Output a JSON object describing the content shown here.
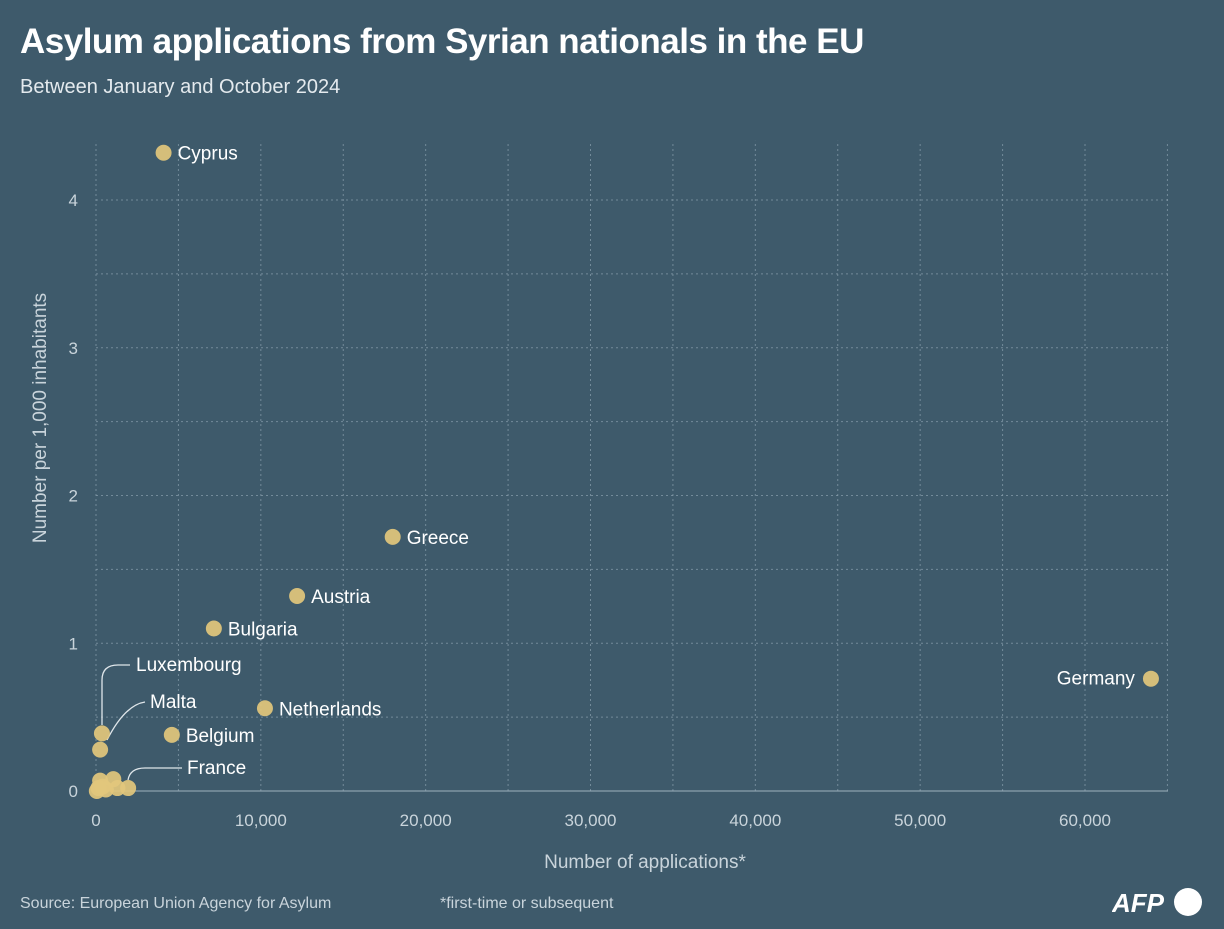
{
  "header": {
    "title": "Asylum applications from Syrian nationals in the EU",
    "subtitle": "Between January and October 2024"
  },
  "footer": {
    "source": "Source: European Union Agency for Asylum",
    "note": "*first-time or subsequent",
    "logo": "AFP"
  },
  "colors": {
    "background": "#3e5a6b",
    "point": "#e2c77c",
    "grid": "#8aa0ae",
    "text": "#ffffff",
    "axis_text": "#c9d4db"
  },
  "chart_data": {
    "type": "scatter",
    "title": "Asylum applications from Syrian nationals in the EU",
    "subtitle": "Between January and October 2024",
    "xlabel": "Number of applications*",
    "ylabel": "Number per 1,000 inhabitants",
    "xlim": [
      0,
      65000
    ],
    "ylim": [
      0,
      4.4
    ],
    "xticks": [
      0,
      10000,
      20000,
      30000,
      40000,
      50000,
      60000
    ],
    "xtick_labels": [
      "0",
      "10,000",
      "20,000",
      "30,000",
      "40,000",
      "50,000",
      "60,000"
    ],
    "yticks": [
      0,
      1,
      2,
      3,
      4
    ],
    "ytick_labels": [
      "0",
      "1",
      "2",
      "3",
      "4"
    ],
    "grid": true,
    "points": [
      {
        "label": "Cyprus",
        "x": 4100,
        "y": 4.32
      },
      {
        "label": "Greece",
        "x": 18000,
        "y": 1.72
      },
      {
        "label": "Austria",
        "x": 12200,
        "y": 1.32
      },
      {
        "label": "Bulgaria",
        "x": 7150,
        "y": 1.1
      },
      {
        "label": "Germany",
        "x": 64000,
        "y": 0.76
      },
      {
        "label": "Netherlands",
        "x": 10250,
        "y": 0.56
      },
      {
        "label": "Luxembourg",
        "x": 360,
        "y": 0.39
      },
      {
        "label": "Belgium",
        "x": 4600,
        "y": 0.38
      },
      {
        "label": "Malta",
        "x": 250,
        "y": 0.28
      },
      {
        "label": "France",
        "x": 1950,
        "y": 0.02
      },
      {
        "label": "",
        "x": 250,
        "y": 0.07
      },
      {
        "label": "",
        "x": 1050,
        "y": 0.08
      },
      {
        "label": "",
        "x": 1300,
        "y": 0.02
      },
      {
        "label": "",
        "x": 600,
        "y": 0.01
      },
      {
        "label": "",
        "x": 50,
        "y": 0.0
      },
      {
        "label": "",
        "x": 400,
        "y": 0.03
      },
      {
        "label": "",
        "x": 150,
        "y": 0.02
      }
    ]
  }
}
